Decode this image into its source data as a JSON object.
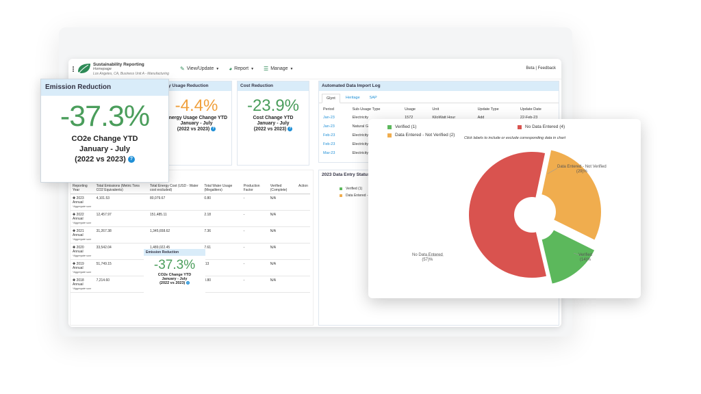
{
  "colors": {
    "green": "#5cb85c",
    "orange": "#f0ad4e",
    "red": "#d9534f",
    "accent": "#1f8fd6",
    "header": "#d9ecf9"
  },
  "app": {
    "title": "Sustainability Reporting",
    "subtitle": "Homepage",
    "location": "Los Angeles, CA, Business Unit A - Manufacturing",
    "nav": [
      {
        "label": "View/Update",
        "icon": "pencil-icon"
      },
      {
        "label": "Report",
        "icon": "pie-icon"
      },
      {
        "label": "Manage",
        "icon": "sliders-icon"
      }
    ],
    "beta": "Beta | Feedback"
  },
  "energy_card": {
    "header": "y Usage Reduction",
    "value": "-4.4%",
    "line1": "Energy Usage Change YTD",
    "line2": "January - July",
    "line3": "(2022 vs 2023)"
  },
  "cost_card": {
    "header": "Cost Reduction",
    "value": "-23.9%",
    "line1": "Cost Change YTD",
    "line2": "January - July",
    "line3": "(2022 vs 2023)"
  },
  "import_log": {
    "header": "Automated Data Import Log",
    "tabs": [
      "Glynt",
      "Heritage",
      "SAP"
    ],
    "columns": [
      "Period",
      "Sub-Usage Type",
      "Usage",
      "Unit",
      "Update Type",
      "Update Date"
    ],
    "rows": [
      [
        "Jan-23",
        "Electricity",
        "1572",
        "KiloWatt Hour",
        "Add",
        "22-Feb-23"
      ],
      [
        "Jan-23",
        "Natural Gas",
        "",
        "",
        "",
        ""
      ],
      [
        "Feb-23",
        "Electricity",
        "",
        "",
        "",
        ""
      ],
      [
        "Feb-23",
        "Electricity",
        "",
        "",
        "",
        ""
      ],
      [
        "Mar-23",
        "Electricity",
        "",
        "",
        "",
        ""
      ]
    ]
  },
  "status_card": {
    "header": "2023 Data Entry Status Su",
    "legend": [
      "Verified (1)",
      "Data Entered - N"
    ]
  },
  "emissions_table": {
    "columns": [
      "Reporting Year",
      "Total Emissions (Metric Tons CO2 Equivalents)",
      "Total Energy Cost (USD - Water cost excluded)",
      "Total Water Usage (Megaliters)",
      "Production Factor",
      "Verified (Complete)",
      "Action"
    ],
    "aggregate_note": "*Aggregate sum",
    "rows": [
      [
        "2023 Annual",
        "4,101.53",
        "80,079.67",
        "0.80",
        "-",
        "N/A"
      ],
      [
        "2022 Annual",
        "12,457.97",
        "151,485.11",
        "2.18",
        "-",
        "N/A"
      ],
      [
        "2021 Annual",
        "31,267.38",
        "1,345,658.62",
        "7.36",
        "-",
        "N/A"
      ],
      [
        "2020 Annual",
        "33,542.04",
        "1,489,022.45",
        "7.61",
        "-",
        "N/A"
      ],
      [
        "2019 Annual",
        "51,749.15",
        "",
        ".13",
        "-",
        "N/A"
      ],
      [
        "2018 Annual",
        "7,214.60",
        "",
        "0.80",
        "-",
        "N/A"
      ]
    ]
  },
  "mini_emission": {
    "header": "Emission Reduction",
    "value": "-37.3%",
    "line1": "CO2e Change YTD",
    "line2": "January - July",
    "line3": "(2022 vs 2023)"
  },
  "emission_card": {
    "header": "Emission Reduction",
    "value": "-37.3%",
    "line1": "CO2e Change YTD",
    "line2": "January - July",
    "line3": "(2022 vs 2023)"
  },
  "chart_data": {
    "type": "pie",
    "hint": "Click labels to include or exclude corresponding data in chart",
    "categories": [
      "Verified",
      "Data Entered - Not Verified",
      "No Data Entered"
    ],
    "values": [
      14,
      29,
      57
    ],
    "legend": [
      "Verified (1)",
      "Data Entered - Not Verified (2)",
      "No Data Entered (4)"
    ],
    "labels": [
      {
        "name": "Verified",
        "pct": "(14)%"
      },
      {
        "name": "Data Entered - Not Verified",
        "pct": "(29)%"
      },
      {
        "name": "No Data Entered",
        "pct": "(57)%"
      }
    ],
    "colors": [
      "#5cb85c",
      "#f0ad4e",
      "#d9534f"
    ]
  }
}
